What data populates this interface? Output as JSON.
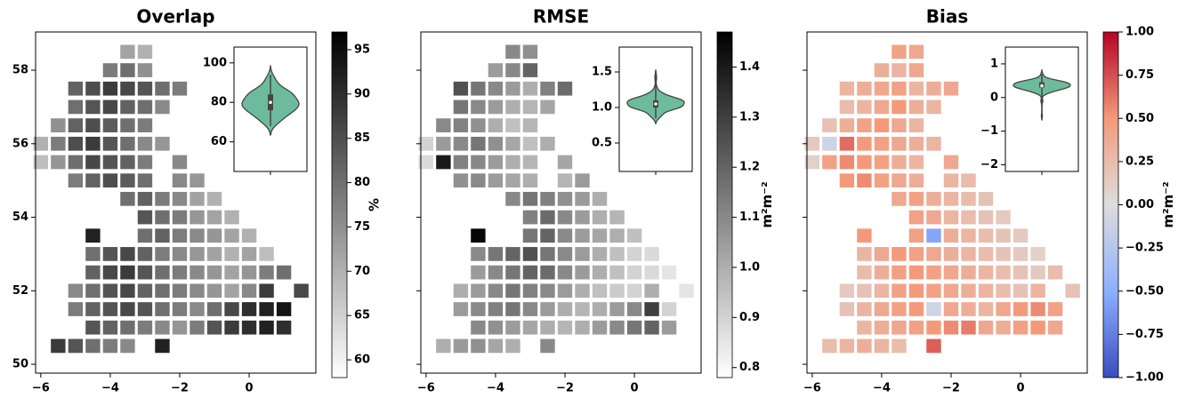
{
  "chart_data": {
    "type": "map",
    "xlim": [
      -6.15,
      1.92
    ],
    "ylim": [
      49.76,
      59.04
    ],
    "xticks": [
      {
        "value": -6,
        "label": "−6"
      },
      {
        "value": -4,
        "label": "−4"
      },
      {
        "value": -2,
        "label": "−2"
      },
      0
    ],
    "yticks": [
      50,
      52,
      54,
      56,
      58
    ],
    "x": [
      -3.5,
      -3,
      -4,
      -3.5,
      -3,
      -5,
      -4.5,
      -4,
      -3.5,
      -3,
      -2.5,
      -2,
      -5,
      -4.5,
      -4,
      -3.5,
      -3,
      -2.5,
      -5.5,
      -5,
      -4.5,
      -4,
      -3.5,
      -3,
      -6,
      -5.5,
      -5,
      -4.5,
      -4,
      -3.5,
      -3,
      -2.5,
      -6,
      -5.5,
      -5,
      -4.5,
      -4,
      -3.5,
      -3,
      -2,
      -5,
      -4.5,
      -4,
      -3.5,
      -3,
      -2,
      -1.5,
      -3.5,
      -3,
      -2.5,
      -2,
      -1.5,
      -1,
      -3,
      -2.5,
      -2,
      -1.5,
      -1,
      -0.5,
      -4.5,
      -3,
      -2.5,
      -2,
      -1.5,
      -1,
      -0.5,
      0,
      -4.5,
      -4,
      -3.5,
      -3,
      -2.5,
      -2,
      -1.5,
      -1,
      -0.5,
      0,
      0.5,
      -4.5,
      -4,
      -3.5,
      -3,
      -2.5,
      -2,
      -1.5,
      -1,
      -0.5,
      0,
      0.5,
      1,
      -5,
      -4.5,
      -4,
      -3.5,
      -3,
      -2.5,
      -2,
      -1.5,
      -1,
      -0.5,
      0,
      0.5,
      1.5,
      -5,
      -4.5,
      -4,
      -3.5,
      -3,
      -2.5,
      -2,
      -1.5,
      -1,
      -0.5,
      0,
      0.5,
      1,
      -4.5,
      -4,
      -3.5,
      -3,
      -2.5,
      -2,
      -1.5,
      -1,
      -0.5,
      0,
      0.5,
      1,
      -5.5,
      -5,
      -4.5,
      -4,
      -3.5,
      -2.5
    ],
    "y": [
      58.5,
      58.5,
      58,
      58,
      58,
      57.5,
      57.5,
      57.5,
      57.5,
      57.5,
      57.5,
      57.5,
      57,
      57,
      57,
      57,
      57,
      57,
      56.5,
      56.5,
      56.5,
      56.5,
      56.5,
      56.5,
      56,
      56,
      56,
      56,
      56,
      56,
      56,
      56,
      55.5,
      55.5,
      55.5,
      55.5,
      55.5,
      55.5,
      55.5,
      55.5,
      55,
      55,
      55,
      55,
      55,
      55,
      55,
      54.5,
      54.5,
      54.5,
      54.5,
      54.5,
      54.5,
      54,
      54,
      54,
      54,
      54,
      54,
      53.5,
      53.5,
      53.5,
      53.5,
      53.5,
      53.5,
      53.5,
      53.5,
      53,
      53,
      53,
      53,
      53,
      53,
      53,
      53,
      53,
      53,
      53,
      52.5,
      52.5,
      52.5,
      52.5,
      52.5,
      52.5,
      52.5,
      52.5,
      52.5,
      52.5,
      52.5,
      52.5,
      52,
      52,
      52,
      52,
      52,
      52,
      52,
      52,
      52,
      52,
      52,
      52,
      52,
      51.5,
      51.5,
      51.5,
      51.5,
      51.5,
      51.5,
      51.5,
      51.5,
      51.5,
      51.5,
      51.5,
      51.5,
      51.5,
      51,
      51,
      51,
      51,
      51,
      51,
      51,
      51,
      51,
      51,
      51,
      51,
      50.5,
      50.5,
      50.5,
      50.5,
      50.5,
      50.5
    ],
    "panels": [
      {
        "title": "Overlap",
        "colormap": "greys",
        "clim": [
          58,
          97
        ],
        "cticks": [
          60,
          65,
          70,
          75,
          80,
          85,
          90,
          95
        ],
        "clabel": "%",
        "values": [
          72,
          70,
          78,
          80,
          75,
          82,
          85,
          88,
          86,
          84,
          80,
          78,
          80,
          84,
          86,
          82,
          80,
          76,
          75,
          82,
          85,
          83,
          80,
          78,
          70,
          78,
          85,
          88,
          84,
          80,
          76,
          74,
          68,
          74,
          80,
          86,
          84,
          82,
          78,
          76,
          78,
          82,
          85,
          83,
          80,
          76,
          74,
          80,
          82,
          78,
          76,
          72,
          70,
          84,
          80,
          78,
          74,
          72,
          70,
          92,
          80,
          82,
          78,
          76,
          74,
          72,
          70,
          80,
          84,
          86,
          82,
          78,
          76,
          74,
          72,
          70,
          72,
          68,
          82,
          86,
          88,
          84,
          80,
          78,
          76,
          74,
          72,
          74,
          78,
          80,
          76,
          80,
          84,
          86,
          82,
          80,
          78,
          76,
          74,
          72,
          76,
          88,
          86,
          78,
          82,
          84,
          86,
          84,
          80,
          78,
          76,
          80,
          86,
          90,
          92,
          94,
          84,
          82,
          80,
          78,
          76,
          74,
          78,
          84,
          88,
          90,
          92,
          90,
          88,
          84,
          80,
          78,
          76,
          92
        ],
        "inset": {
          "type": "violin",
          "color": "#6dbb9f",
          "ylim": [
            45,
            108
          ],
          "yticks": [
            60,
            80,
            100
          ]
        }
      },
      {
        "title": "RMSE",
        "colormap": "greys",
        "clim": [
          0.78,
          1.47
        ],
        "cticks": [
          0.8,
          0.9,
          {
            "value": 1,
            "label": "1.0"
          },
          1.1,
          1.2,
          1.3,
          1.4
        ],
        "clabel": "m²m⁻²",
        "values": [
          1.1,
          1.08,
          1.05,
          1.1,
          1.2,
          1.25,
          1.15,
          1.1,
          1.05,
          1.0,
          1.12,
          1.18,
          1.15,
          1.1,
          1.05,
          1.0,
          0.98,
          1.02,
          1.1,
          1.12,
          1.08,
          1.0,
          0.95,
          0.98,
          0.9,
          1.05,
          1.1,
          1.15,
          1.08,
          1.02,
          0.95,
          1.0,
          0.88,
          1.4,
          1.12,
          1.1,
          1.05,
          1.0,
          0.98,
          1.02,
          1.08,
          1.1,
          1.05,
          1.02,
          1.0,
          0.98,
          1.05,
          1.1,
          1.15,
          1.12,
          1.08,
          1.05,
          1.0,
          1.12,
          1.18,
          1.1,
          1.05,
          1.0,
          0.98,
          1.45,
          1.15,
          1.2,
          1.1,
          1.05,
          1.02,
          1.0,
          0.95,
          1.1,
          1.15,
          1.2,
          1.25,
          1.15,
          1.1,
          1.05,
          1.0,
          0.95,
          0.9,
          0.88,
          1.05,
          1.1,
          1.15,
          1.2,
          1.18,
          1.1,
          1.05,
          1.0,
          0.95,
          0.9,
          0.88,
          0.85,
          1.0,
          1.05,
          1.1,
          1.15,
          1.12,
          1.1,
          1.05,
          1.0,
          0.95,
          0.92,
          0.9,
          1.0,
          0.85,
          1.05,
          1.1,
          1.12,
          1.15,
          1.1,
          1.05,
          1.0,
          0.98,
          1.0,
          1.05,
          1.1,
          1.3,
          0.9,
          1.1,
          1.08,
          1.05,
          1.02,
          1.0,
          0.98,
          1.0,
          1.05,
          1.1,
          1.15,
          1.2,
          1.05,
          1.0,
          1.05,
          1.08,
          1.02,
          1.0,
          1.1
        ],
        "inset": {
          "type": "violin",
          "color": "#6dbb9f",
          "ylim": [
            0.1,
            1.85
          ],
          "yticks": [
            0.5,
            {
              "value": 1,
              "label": "1.0"
            },
            1.5
          ]
        }
      },
      {
        "title": "Bias",
        "colormap": "coolwarm",
        "clim": [
          -1,
          1
        ],
        "cticks": [
          {
            "value": -1,
            "label": "−1.00"
          },
          {
            "value": -0.75,
            "label": "−0.75"
          },
          {
            "value": -0.5,
            "label": "−0.50"
          },
          {
            "value": -0.25,
            "label": "−0.25"
          },
          {
            "value": 0,
            "label": "0.00"
          },
          {
            "value": 0.25,
            "label": "0.25"
          },
          {
            "value": 0.5,
            "label": "0.50"
          },
          {
            "value": 0.75,
            "label": "0.75"
          },
          {
            "value": 1,
            "label": "1.00"
          }
        ],
        "clabel": "m²m⁻²",
        "values": [
          0.45,
          0.4,
          0.35,
          0.3,
          0.4,
          0.3,
          0.35,
          0.4,
          0.45,
          0.3,
          0.35,
          0.4,
          0.25,
          0.3,
          0.4,
          0.5,
          0.35,
          0.3,
          0.2,
          0.35,
          0.45,
          0.5,
          0.4,
          0.3,
          0.15,
          -0.1,
          0.65,
          0.5,
          0.45,
          0.4,
          0.35,
          0.3,
          0.1,
          0.45,
          0.55,
          0.5,
          0.45,
          0.35,
          0.3,
          0.4,
          0.5,
          0.55,
          0.45,
          0.4,
          0.35,
          0.3,
          0.25,
          0.4,
          0.45,
          0.35,
          0.3,
          0.25,
          0.2,
          0.45,
          0.4,
          0.3,
          0.25,
          0.2,
          0.15,
          0.5,
          0.45,
          -0.55,
          0.35,
          0.3,
          0.25,
          0.2,
          0.15,
          0.3,
          0.4,
          0.5,
          0.45,
          0.4,
          0.35,
          0.3,
          0.25,
          0.2,
          0.15,
          0.1,
          0.25,
          0.35,
          0.45,
          0.5,
          0.45,
          0.4,
          0.35,
          0.3,
          0.25,
          0.2,
          0.15,
          0.25,
          0.15,
          0.2,
          0.3,
          0.45,
          0.5,
          0.45,
          0.4,
          0.35,
          0.3,
          0.25,
          0.2,
          0.3,
          0.2,
          0.2,
          0.3,
          0.4,
          0.45,
          0.5,
          -0.1,
          0.4,
          0.35,
          0.3,
          0.4,
          0.5,
          0.55,
          0.45,
          0.3,
          0.35,
          0.4,
          0.45,
          0.5,
          0.55,
          0.6,
          0.4,
          0.35,
          0.45,
          0.5,
          0.4,
          0.25,
          0.3,
          0.35,
          0.3,
          0.25,
          0.7
        ],
        "inset": {
          "type": "violin",
          "color": "#6dbb9f",
          "ylim": [
            -2.2,
            1.5
          ],
          "yticks": [
            {
              "value": -2,
              "label": "−2"
            },
            {
              "value": -1,
              "label": "−1"
            },
            0,
            1
          ]
        }
      }
    ]
  }
}
